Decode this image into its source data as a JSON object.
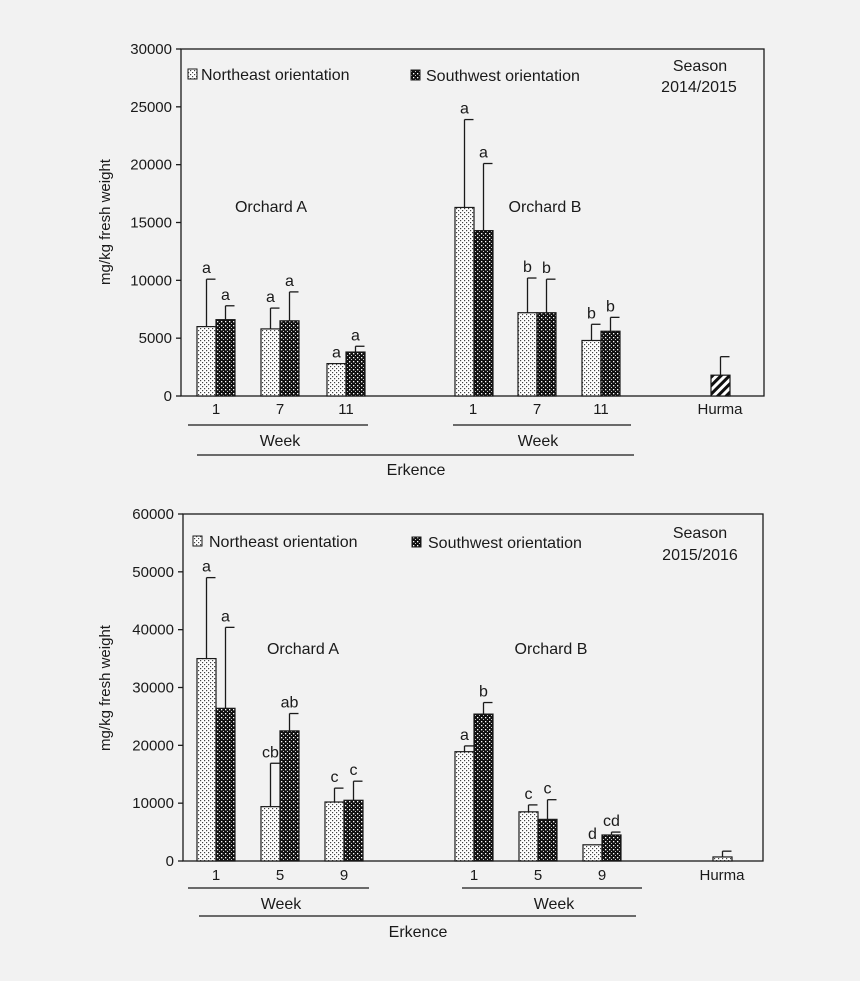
{
  "chart_data": [
    {
      "type": "bar",
      "season_line1": "Season",
      "season_line2": "2014/2015",
      "ylabel": "mg/kg fresh weight",
      "ylim": [
        0,
        30000
      ],
      "yticks": [
        "0",
        "5000",
        "10000",
        "15000",
        "20000",
        "25000",
        "30000"
      ],
      "legend": [
        {
          "name": "Northeast orientation",
          "pattern": "dots-light"
        },
        {
          "name": "Southwest orientation",
          "pattern": "dots-dark"
        }
      ],
      "groups": [
        {
          "name": "Orchard A",
          "axis_label": "Week",
          "categories": [
            "1",
            "7",
            "11"
          ],
          "series": [
            {
              "name": "Northeast orientation",
              "values": [
                6000,
                5800,
                2800
              ],
              "errors": [
                4100,
                1800,
                0
              ],
              "letters": [
                "a",
                "a",
                "a"
              ]
            },
            {
              "name": "Southwest orientation",
              "values": [
                6600,
                6500,
                3800
              ],
              "errors": [
                1200,
                2500,
                500
              ],
              "letters": [
                "a",
                "a",
                "a"
              ]
            }
          ]
        },
        {
          "name": "Orchard B",
          "axis_label": "Week",
          "categories": [
            "1",
            "7",
            "11"
          ],
          "series": [
            {
              "name": "Northeast orientation",
              "values": [
                16300,
                7200,
                4800
              ],
              "errors": [
                7600,
                3000,
                1400
              ],
              "letters": [
                "a",
                "b",
                "b"
              ]
            },
            {
              "name": "Southwest orientation",
              "values": [
                14300,
                7200,
                5600
              ],
              "errors": [
                5800,
                2900,
                1200
              ],
              "letters": [
                "a",
                "b",
                "b"
              ]
            }
          ]
        }
      ],
      "extra": {
        "name": "Hurma",
        "value": 1800,
        "error": 1600,
        "pattern": "hatch"
      },
      "cultivar": "Erkence"
    },
    {
      "type": "bar",
      "season_line1": "Season",
      "season_line2": "2015/2016",
      "ylabel": "mg/kg fresh weight",
      "ylim": [
        0,
        60000
      ],
      "yticks": [
        "0",
        "10000",
        "20000",
        "30000",
        "40000",
        "50000",
        "60000"
      ],
      "legend": [
        {
          "name": "Northeast orientation",
          "pattern": "dots-light"
        },
        {
          "name": "Southwest orientation",
          "pattern": "dots-dark"
        }
      ],
      "groups": [
        {
          "name": "Orchard A",
          "axis_label": "Week",
          "categories": [
            "1",
            "5",
            "9"
          ],
          "series": [
            {
              "name": "Northeast orientation",
              "values": [
                35000,
                9400,
                10200
              ],
              "errors": [
                14000,
                7500,
                2400
              ],
              "letters": [
                "a",
                "cb",
                "c"
              ]
            },
            {
              "name": "Southwest orientation",
              "values": [
                26400,
                22500,
                10500
              ],
              "errors": [
                14000,
                3000,
                3300
              ],
              "letters": [
                "a",
                "ab",
                "c"
              ]
            }
          ]
        },
        {
          "name": "Orchard B",
          "axis_label": "Week",
          "categories": [
            "1",
            "5",
            "9"
          ],
          "series": [
            {
              "name": "Northeast orientation",
              "values": [
                18900,
                8500,
                2800
              ],
              "errors": [
                1000,
                1200,
                0
              ],
              "letters": [
                "a",
                "c",
                "d"
              ]
            },
            {
              "name": "Southwest orientation",
              "values": [
                25400,
                7200,
                4500
              ],
              "errors": [
                2000,
                3400,
                500
              ],
              "letters": [
                "b",
                "c",
                "cd"
              ]
            }
          ]
        }
      ],
      "extra": {
        "name": "Hurma",
        "value": 700,
        "error": 1000,
        "pattern": "dots-light"
      },
      "cultivar": "Erkence"
    }
  ]
}
